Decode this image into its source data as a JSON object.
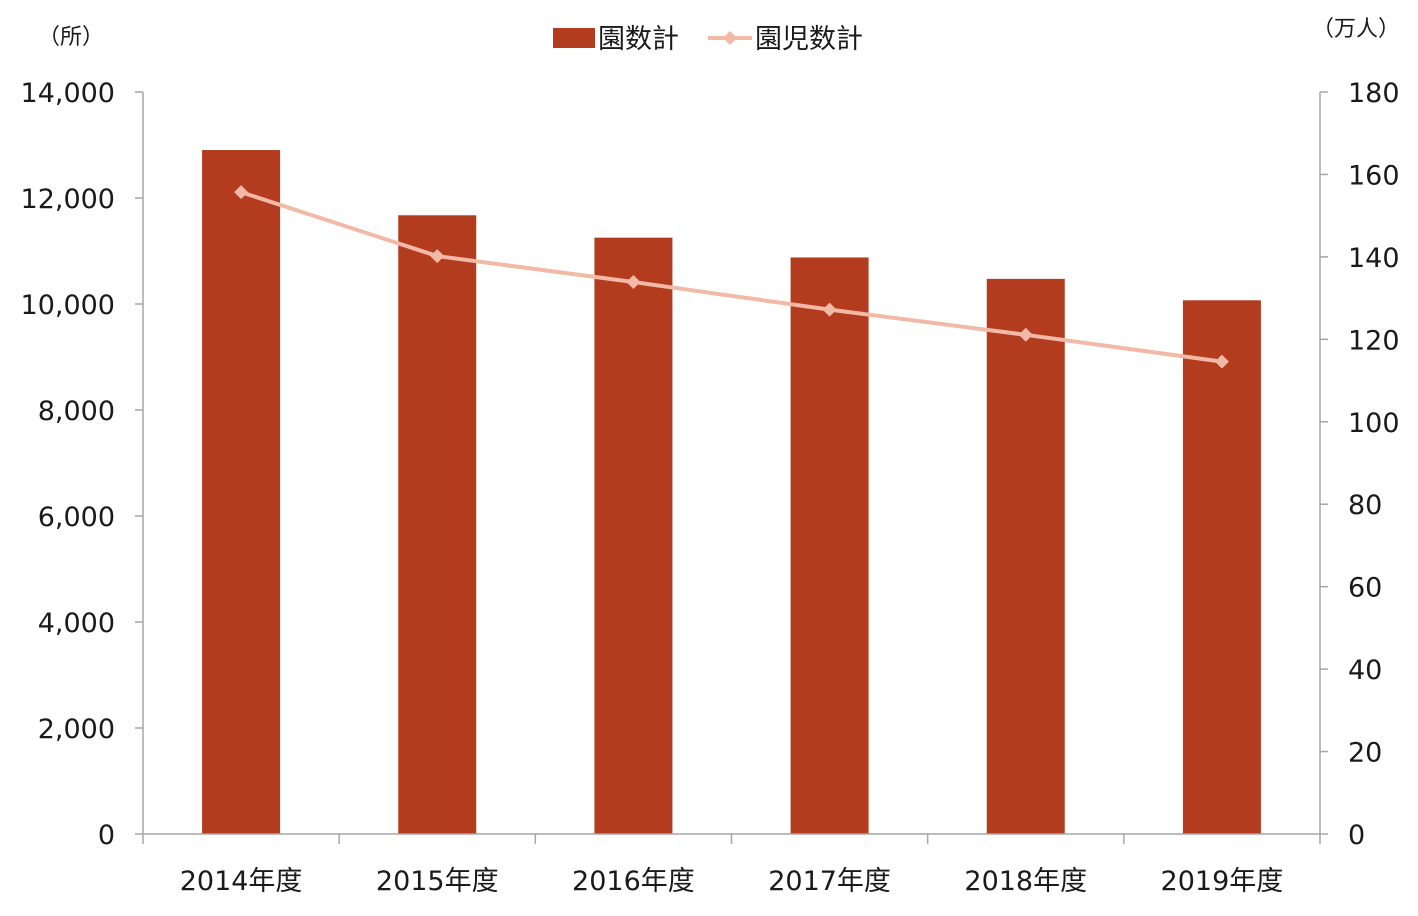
{
  "chart_data": {
    "type": "bar",
    "categories": [
      "2014年度",
      "2015年度",
      "2016年度",
      "2017年度",
      "2018年度",
      "2019年度"
    ],
    "series": [
      {
        "name": "園数計",
        "type": "bar",
        "axis": "left",
        "values": [
          12905,
          11674,
          11252,
          10878,
          10474,
          10070
        ],
        "color": "#b33b1e"
      },
      {
        "name": "園児数計",
        "type": "line",
        "axis": "right",
        "marker": "diamond",
        "values": [
          155.7,
          140.2,
          133.9,
          127.2,
          121.1,
          114.6
        ],
        "color": "#f2b9a6"
      }
    ],
    "y_left": {
      "unit": "（所）",
      "lim": [
        0,
        14000
      ],
      "ticks": [
        0,
        2000,
        4000,
        6000,
        8000,
        10000,
        12000,
        14000
      ],
      "tick_labels": [
        "0",
        "2,000",
        "4,000",
        "6,000",
        "8,000",
        "10,000",
        "12,000",
        "14,000"
      ]
    },
    "y_right": {
      "unit": "（万人）",
      "lim": [
        0,
        180
      ],
      "ticks": [
        0,
        20,
        40,
        60,
        80,
        100,
        120,
        140,
        160,
        180
      ],
      "tick_labels": [
        "0",
        "20",
        "40",
        "60",
        "80",
        "100",
        "120",
        "140",
        "160",
        "180"
      ]
    },
    "legend": {
      "position": "top-center",
      "entries": [
        "園数計",
        "園児数計"
      ]
    },
    "grid": false
  }
}
